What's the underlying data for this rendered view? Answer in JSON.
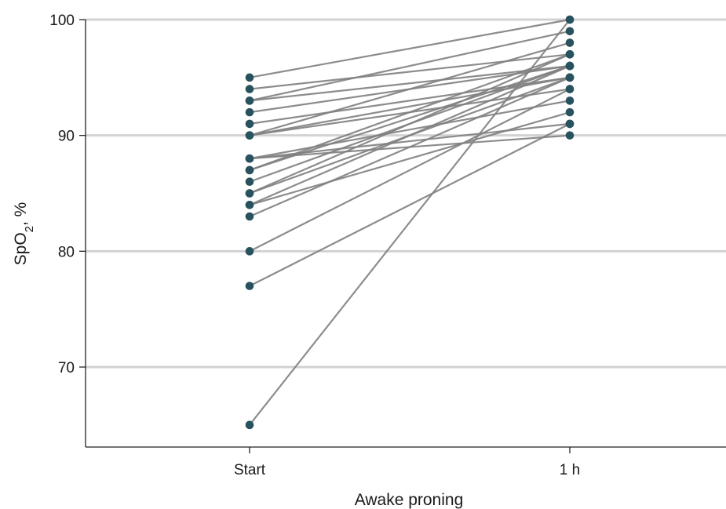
{
  "chart_data": {
    "type": "line",
    "xlabel": "Awake proning",
    "ylabel_main": "SpO",
    "ylabel_sub": "2",
    "ylabel_suffix": ", %",
    "categories": [
      "Start",
      "1 h"
    ],
    "ylim": [
      63,
      101
    ],
    "yticks": [
      70,
      80,
      90,
      100
    ],
    "grid": true,
    "line_color": "#808080",
    "point_color": "#27525e",
    "pairs": [
      [
        95,
        100
      ],
      [
        94,
        97
      ],
      [
        93,
        96
      ],
      [
        93,
        99
      ],
      [
        92,
        96
      ],
      [
        91,
        95
      ],
      [
        90,
        98
      ],
      [
        90,
        95
      ],
      [
        90,
        94
      ],
      [
        88,
        90
      ],
      [
        88,
        93
      ],
      [
        88,
        91
      ],
      [
        87,
        96
      ],
      [
        87,
        97
      ],
      [
        86,
        96
      ],
      [
        85,
        95
      ],
      [
        85,
        97
      ],
      [
        84,
        96
      ],
      [
        84,
        92
      ],
      [
        83,
        95
      ],
      [
        80,
        94
      ],
      [
        77,
        91
      ],
      [
        65,
        100
      ]
    ]
  }
}
